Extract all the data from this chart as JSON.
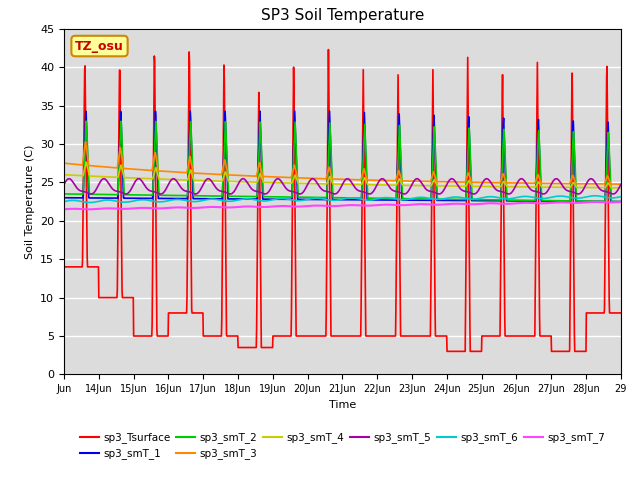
{
  "title": "SP3 Soil Temperature",
  "xlabel": "Time",
  "ylabel": "Soil Temperature (C)",
  "ylim": [
    0,
    45
  ],
  "xlim_days": [
    13,
    29
  ],
  "annotation_text": "TZ_osu",
  "annotation_bg": "#FFFF99",
  "annotation_border": "#CC8800",
  "bg_color": "#DCDCDC",
  "series_order": [
    "sp3_Tsurface",
    "sp3_smT_1",
    "sp3_smT_2",
    "sp3_smT_3",
    "sp3_smT_4",
    "sp3_smT_5",
    "sp3_smT_6",
    "sp3_smT_7"
  ],
  "series": {
    "sp3_Tsurface": {
      "color": "#FF0000",
      "lw": 1.2
    },
    "sp3_smT_1": {
      "color": "#0000EE",
      "lw": 1.2
    },
    "sp3_smT_2": {
      "color": "#00CC00",
      "lw": 1.2
    },
    "sp3_smT_3": {
      "color": "#FF8800",
      "lw": 1.2
    },
    "sp3_smT_4": {
      "color": "#CCCC00",
      "lw": 1.2
    },
    "sp3_smT_5": {
      "color": "#AA00AA",
      "lw": 1.2
    },
    "sp3_smT_6": {
      "color": "#00CCCC",
      "lw": 1.2
    },
    "sp3_smT_7": {
      "color": "#FF44FF",
      "lw": 1.5
    }
  },
  "tick_labels": [
    "Jun",
    "14Jun",
    "15Jun",
    "16Jun",
    "17Jun",
    "18Jun",
    "19Jun",
    "20Jun",
    "21Jun",
    "22Jun",
    "23Jun",
    "24Jun",
    "25Jun",
    "26Jun",
    "27Jun",
    "28Jun",
    "29"
  ],
  "tick_positions": [
    13,
    14,
    15,
    16,
    17,
    18,
    19,
    20,
    21,
    22,
    23,
    24,
    25,
    26,
    27,
    28,
    29
  ],
  "yticks": [
    0,
    5,
    10,
    15,
    20,
    25,
    30,
    35,
    40,
    45
  ]
}
